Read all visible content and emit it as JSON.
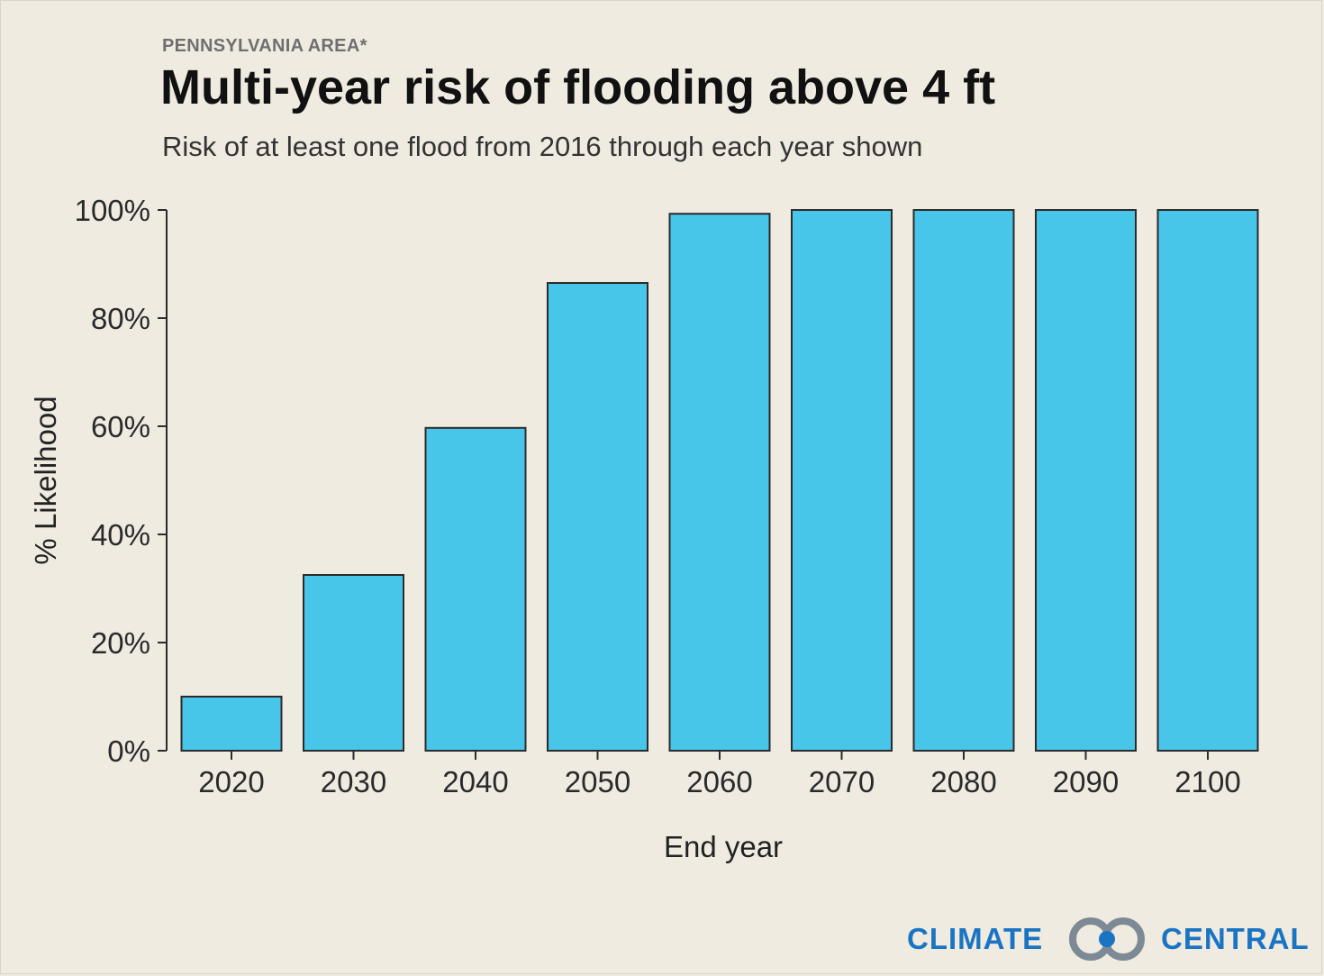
{
  "header": {
    "kicker": "PENNSYLVANIA AREA*",
    "title": "Multi-year risk of flooding above 4 ft",
    "subtitle": "Risk of at least one flood from 2016 through each year shown"
  },
  "chart_data": {
    "type": "bar",
    "categories": [
      "2020",
      "2030",
      "2040",
      "2050",
      "2060",
      "2070",
      "2080",
      "2090",
      "2100"
    ],
    "values": [
      10,
      32.5,
      59.7,
      86.5,
      99.3,
      100,
      100,
      100,
      100
    ],
    "xlabel": "End year",
    "ylabel": "% Likelihood",
    "ylim": [
      0,
      100
    ],
    "yticks": [
      {
        "value": 0,
        "label": "0%"
      },
      {
        "value": 20,
        "label": "20%"
      },
      {
        "value": 40,
        "label": "40%"
      },
      {
        "value": 60,
        "label": "60%"
      },
      {
        "value": 80,
        "label": "80%"
      },
      {
        "value": 100,
        "label": "100%"
      }
    ],
    "grid": false,
    "bar_color": "#48c6ea",
    "bar_stroke": "#2b2b2b"
  },
  "logo": {
    "left_text": "CLIMATE",
    "right_text": "CENTRAL",
    "text_color": "#1a74c3",
    "ring_color": "#7d8a95"
  }
}
